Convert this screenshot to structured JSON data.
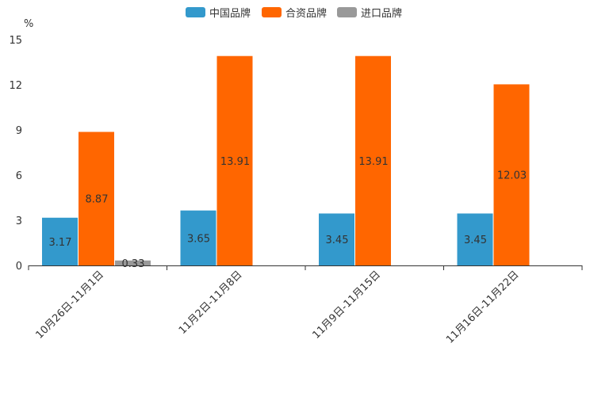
{
  "chart_data": {
    "type": "bar",
    "title": "",
    "ylabel": "%",
    "xlabel": "",
    "ylim": [
      0,
      15
    ],
    "yticks": [
      0,
      3,
      6,
      9,
      12,
      15
    ],
    "categories": [
      "10月26日-11月1日",
      "11月2日-11月8日",
      "11月9日-11月15日",
      "11月16日-11月22日"
    ],
    "series": [
      {
        "name": "中国品牌",
        "color": "#3399cc",
        "values": [
          3.17,
          3.65,
          3.45,
          3.45
        ],
        "labels": [
          "3.17",
          "3.65",
          "3.45",
          "3.45"
        ]
      },
      {
        "name": "合资品牌",
        "color": "#ff6600",
        "values": [
          8.87,
          13.91,
          13.91,
          12.03
        ],
        "labels": [
          "8.87",
          "13.91",
          "13.91",
          "12.03"
        ]
      },
      {
        "name": "进口品牌",
        "color": "#999999",
        "values": [
          0.33,
          null,
          null,
          null
        ],
        "labels": [
          "0.33",
          null,
          null,
          null
        ]
      }
    ],
    "legend_position": "top-center",
    "grid": false
  }
}
